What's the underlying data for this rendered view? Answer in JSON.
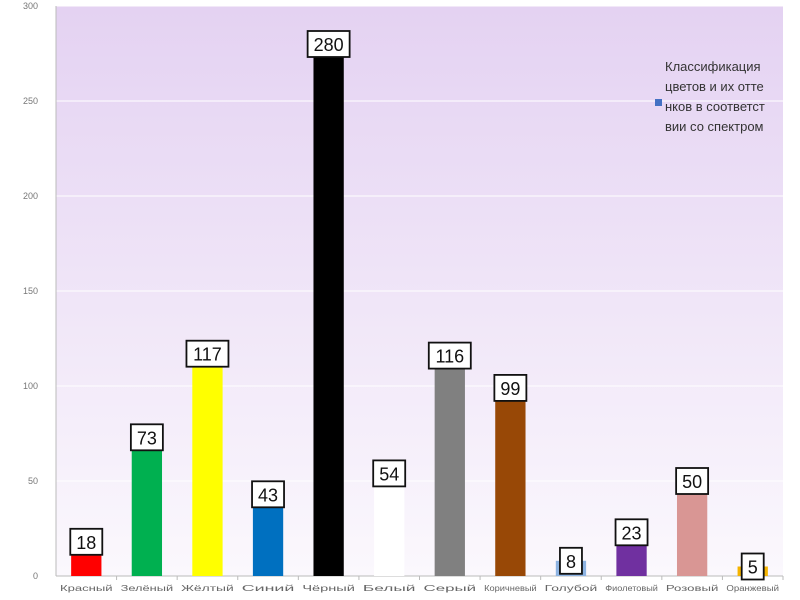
{
  "chart_data": {
    "type": "bar",
    "categories": [
      "Красный",
      "Зелёный",
      "Жёлтый",
      "Синий",
      "Чёрный",
      "Белый",
      "Серый",
      "Коричневый",
      "Голубой",
      "Фиолетовый",
      "Розовый",
      "Оранжевый"
    ],
    "series": [
      {
        "name": "Классификация цветов и их оттенков в соответствии со спектром",
        "values": [
          18,
          73,
          117,
          43,
          280,
          54,
          116,
          99,
          8,
          23,
          50,
          5
        ],
        "colors": [
          "#ff0000",
          "#00b050",
          "#ffff00",
          "#0070c0",
          "#000000",
          "#ffffff",
          "#808080",
          "#984806",
          "#8db3e2",
          "#7030a0",
          "#d99694",
          "#f5b400"
        ]
      }
    ],
    "ylim": [
      0,
      300
    ],
    "yticks": [
      0,
      50,
      100,
      150,
      200,
      250,
      300
    ],
    "ytick_labels": [
      "0",
      "50",
      "100",
      "150",
      "200",
      "250",
      "300"
    ],
    "data_labels": true,
    "grid": true,
    "legend_position": "right",
    "legend_color": "#4472c4",
    "background_colors": [
      "#e4d2f2",
      "#fbf8fd"
    ]
  }
}
